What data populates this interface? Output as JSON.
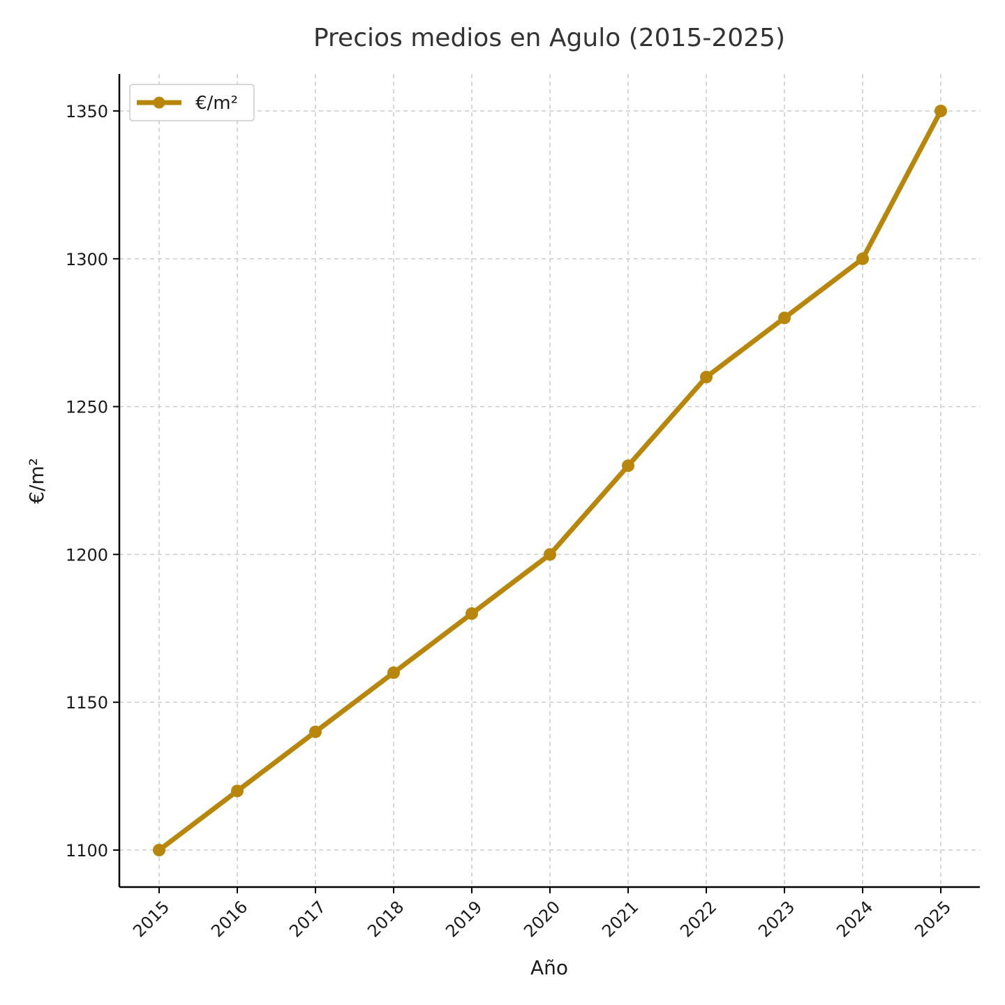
{
  "chart_data": {
    "type": "line",
    "title": "Precios medios en Agulo (2015-2025)",
    "xlabel": "Año",
    "ylabel": "€/m²",
    "categories": [
      "2015",
      "2016",
      "2017",
      "2018",
      "2019",
      "2020",
      "2021",
      "2022",
      "2023",
      "2024",
      "2025"
    ],
    "series": [
      {
        "name": "€/m²",
        "values": [
          1100,
          1120,
          1140,
          1160,
          1180,
          1200,
          1230,
          1260,
          1280,
          1300,
          1350
        ],
        "color": "#b8860b"
      }
    ],
    "yticks": [
      1100,
      1150,
      1200,
      1250,
      1300,
      1350
    ],
    "ylim": [
      1087.5,
      1362.5
    ],
    "grid": true,
    "legend_position": "top-left"
  }
}
